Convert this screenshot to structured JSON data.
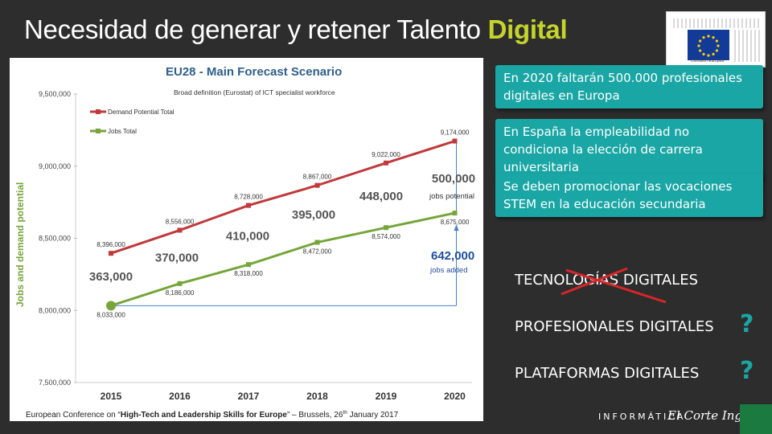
{
  "slide": {
    "title_main": "Necesidad de generar y retener Talento ",
    "title_highlight": "Digital"
  },
  "eu_logo": {
    "caption": "Comisión Europea"
  },
  "chart_data": {
    "type": "line",
    "title": "EU28 - Main Forecast Scenario",
    "subtitle": "Broad definition (Eurostat) of ICT specialist workforce",
    "ylabel": "Jobs and demand potential",
    "xlabel": "",
    "categories": [
      "2015",
      "2016",
      "2017",
      "2018",
      "2019",
      "2020"
    ],
    "ylim": [
      7500000,
      9500000
    ],
    "yticks": [
      "7,500,000",
      "8,000,000",
      "8,500,000",
      "9,000,000",
      "9,500,000"
    ],
    "ytick_values": [
      7500000,
      8000000,
      8500000,
      9000000,
      9500000
    ],
    "series": [
      {
        "name": "Demand Potential Total",
        "color": "#c0393b",
        "values": [
          8396000,
          8556000,
          8728000,
          8867000,
          9022000,
          9174000
        ],
        "labels": [
          "8,396,000",
          "8,556,000",
          "8,728,000",
          "8,867,000",
          "9,022,000",
          "9,174,000"
        ]
      },
      {
        "name": "Jobs Total",
        "color": "#76a53a",
        "values": [
          8033000,
          8186000,
          8318000,
          8472000,
          8574000,
          8675000
        ],
        "labels": [
          "8,033,000",
          "8,186,000",
          "8,318,000",
          "8,472,000",
          "8,574,000",
          "8,675,000"
        ]
      }
    ],
    "gap_labels": [
      "363,000",
      "370,000",
      "410,000",
      "395,000",
      "448,000",
      "500,000"
    ],
    "gap_500_caption": "jobs potential",
    "added_value": "642,000",
    "added_caption": "jobs added",
    "footer_prefix": "European Conference on “",
    "footer_bold": "High-Tech and Leadership Skills for Europe",
    "footer_suffix": "” – Brussels, 26",
    "footer_sup": "th",
    "footer_end": " January 2017",
    "grid": false,
    "legend": "top-left"
  },
  "notes": [
    "En 2020 faltarán 500.000 profesionales digitales en Europa",
    "En España la empleabilidad no condiciona la elección de carrera universitaria",
    "Se deben promocionar las vocaciones STEM en la educación secundaria"
  ],
  "keywords": {
    "k1": "TECNOLOGÍAS DIGITALES",
    "k2": "PROFESIONALES DIGITALES",
    "k3": "PLATAFORMAS DIGITALES",
    "q": "?"
  },
  "footer": {
    "brand_left": "INFORMÁTICA",
    "brand_right": "El Corte Inglés"
  }
}
